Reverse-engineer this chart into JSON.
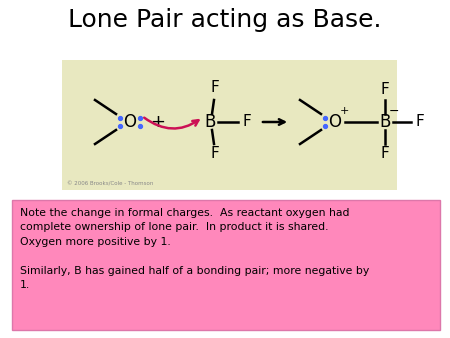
{
  "title": "Lone Pair acting as Base.",
  "title_fontsize": 18,
  "bg_color": "#ffffff",
  "box_facecolor": "#e8e8c0",
  "note_bg_color": "#ff88bb",
  "copyright": "© 2006 Brooks/Cole - Thomson",
  "dot_color": "#4466ff",
  "arrow_color": "#cc1155",
  "note_text": "Note the change in formal charges.  As reactant oxygen had\ncomplete ownership of lone pair.  In product it is shared.\nOxygen more positive by 1.\n\nSimilarly, B has gained half of a bonding pair; more negative by\n1."
}
